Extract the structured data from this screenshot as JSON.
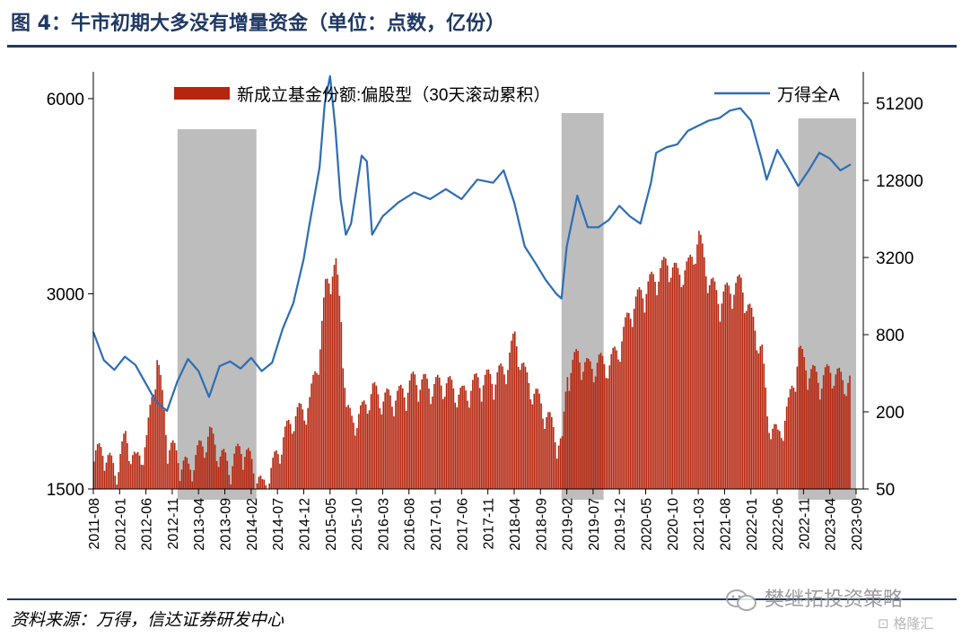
{
  "header": {
    "title": "图 4：牛市初期大多没有增量资金（单位：点数，亿份）"
  },
  "footer": {
    "source": "资料来源：万得，信达证券研发中心"
  },
  "watermark": {
    "account": "樊继拓投资策略",
    "site": "格隆汇"
  },
  "colors": {
    "bars": "#b5260f",
    "line": "#2e6db4",
    "shade": "#bdbdbd",
    "title": "#1f3864"
  },
  "icons": {
    "wechat": "wechat-icon",
    "site": "gelonghui-logo-icon"
  },
  "chart_data": {
    "type": "bar+line",
    "legend_placement": "top",
    "legend": [
      {
        "name": "新成立基金份额:偏股型（30天滚动累积）",
        "kind": "bar",
        "axis": "right"
      },
      {
        "name": "万得全A",
        "kind": "line",
        "axis": "left"
      }
    ],
    "x_ticks": [
      "2011-08",
      "2012-01",
      "2012-06",
      "2012-11",
      "2013-04",
      "2013-09",
      "2014-02",
      "2014-07",
      "2014-12",
      "2015-05",
      "2015-10",
      "2016-03",
      "2016-08",
      "2017-01",
      "2017-06",
      "2017-11",
      "2018-04",
      "2018-09",
      "2019-02",
      "2019-07",
      "2019-12",
      "2020-05",
      "2020-10",
      "2021-03",
      "2021-08",
      "2022-01",
      "2022-06",
      "2022-11",
      "2023-04",
      "2023-09"
    ],
    "left_axis": {
      "scale": "log",
      "range": [
        1500,
        6600
      ],
      "ticks": [
        1500,
        3000,
        6000
      ]
    },
    "right_axis": {
      "scale": "log",
      "range": [
        50,
        90000
      ],
      "ticks": [
        50,
        200,
        800,
        3200,
        12800,
        51200
      ]
    },
    "shaded_periods": [
      [
        "2012-12",
        "2014-03"
      ],
      [
        "2019-01",
        "2019-09"
      ],
      [
        "2022-10",
        "2023-09"
      ]
    ],
    "series": [
      {
        "name": "万得全A",
        "axis": "left",
        "dates": [
          "2011-08",
          "2011-10",
          "2011-12",
          "2012-02",
          "2012-04",
          "2012-06",
          "2012-08",
          "2012-10",
          "2012-12",
          "2013-02",
          "2013-04",
          "2013-06",
          "2013-08",
          "2013-10",
          "2013-12",
          "2014-02",
          "2014-04",
          "2014-06",
          "2014-08",
          "2014-10",
          "2014-12",
          "2015-01",
          "2015-03",
          "2015-04",
          "2015-05",
          "2015-06",
          "2015-07",
          "2015-08",
          "2015-09",
          "2015-11",
          "2015-12",
          "2016-01",
          "2016-03",
          "2016-06",
          "2016-09",
          "2016-12",
          "2017-03",
          "2017-06",
          "2017-09",
          "2017-12",
          "2018-02",
          "2018-04",
          "2018-06",
          "2018-08",
          "2018-10",
          "2018-12",
          "2019-01",
          "2019-02",
          "2019-04",
          "2019-06",
          "2019-08",
          "2019-10",
          "2019-12",
          "2020-02",
          "2020-04",
          "2020-06",
          "2020-07",
          "2020-09",
          "2020-11",
          "2021-01",
          "2021-03",
          "2021-05",
          "2021-07",
          "2021-09",
          "2021-11",
          "2022-01",
          "2022-03",
          "2022-04",
          "2022-06",
          "2022-08",
          "2022-10",
          "2022-12",
          "2023-02",
          "2023-04",
          "2023-06",
          "2023-08"
        ],
        "values": [
          2620,
          2370,
          2290,
          2400,
          2330,
          2180,
          2040,
          1980,
          2200,
          2380,
          2280,
          2080,
          2320,
          2360,
          2300,
          2390,
          2280,
          2350,
          2650,
          2900,
          3400,
          3800,
          4700,
          5900,
          6500,
          5400,
          4200,
          3700,
          3850,
          4900,
          4800,
          3700,
          3950,
          4150,
          4300,
          4200,
          4350,
          4200,
          4500,
          4450,
          4650,
          4150,
          3550,
          3350,
          3150,
          3000,
          2950,
          3550,
          4250,
          3800,
          3800,
          3900,
          4100,
          3950,
          3850,
          4450,
          4950,
          5050,
          5100,
          5350,
          5450,
          5550,
          5600,
          5750,
          5800,
          5550,
          4850,
          4500,
          5000,
          4700,
          4400,
          4650,
          4950,
          4850,
          4650,
          4750
        ]
      },
      {
        "name": "新成立基金份额:偏股型（30天滚动累积）",
        "axis": "right",
        "dates": [
          "2011-08",
          "2011-10",
          "2011-12",
          "2012-02",
          "2012-04",
          "2012-06",
          "2012-08",
          "2012-10",
          "2012-12",
          "2013-02",
          "2013-04",
          "2013-06",
          "2013-08",
          "2013-10",
          "2013-12",
          "2014-02",
          "2014-04",
          "2014-06",
          "2014-08",
          "2014-10",
          "2014-12",
          "2015-01",
          "2015-03",
          "2015-04",
          "2015-05",
          "2015-06",
          "2015-07",
          "2015-08",
          "2015-09",
          "2015-11",
          "2015-12",
          "2016-01",
          "2016-03",
          "2016-06",
          "2016-09",
          "2016-12",
          "2017-03",
          "2017-06",
          "2017-09",
          "2017-12",
          "2018-02",
          "2018-04",
          "2018-06",
          "2018-08",
          "2018-10",
          "2018-12",
          "2019-01",
          "2019-02",
          "2019-04",
          "2019-06",
          "2019-08",
          "2019-10",
          "2019-12",
          "2020-02",
          "2020-04",
          "2020-06",
          "2020-07",
          "2020-09",
          "2020-11",
          "2021-01",
          "2021-03",
          "2021-05",
          "2021-07",
          "2021-09",
          "2021-11",
          "2022-01",
          "2022-03",
          "2022-04",
          "2022-06",
          "2022-08",
          "2022-10",
          "2022-12",
          "2023-02",
          "2023-04",
          "2023-06",
          "2023-08"
        ],
        "values": [
          110,
          120,
          80,
          150,
          95,
          140,
          650,
          140,
          105,
          85,
          120,
          160,
          110,
          90,
          130,
          95,
          60,
          90,
          150,
          220,
          250,
          280,
          800,
          2200,
          3000,
          3200,
          1300,
          250,
          200,
          240,
          300,
          350,
          300,
          320,
          430,
          380,
          400,
          320,
          420,
          440,
          500,
          900,
          450,
          320,
          230,
          150,
          130,
          500,
          650,
          520,
          580,
          560,
          800,
          1500,
          2000,
          2500,
          2800,
          3500,
          2800,
          3200,
          5500,
          2500,
          1800,
          2200,
          2400,
          1300,
          700,
          220,
          150,
          260,
          700,
          500,
          420,
          500,
          430,
          400
        ]
      }
    ]
  }
}
